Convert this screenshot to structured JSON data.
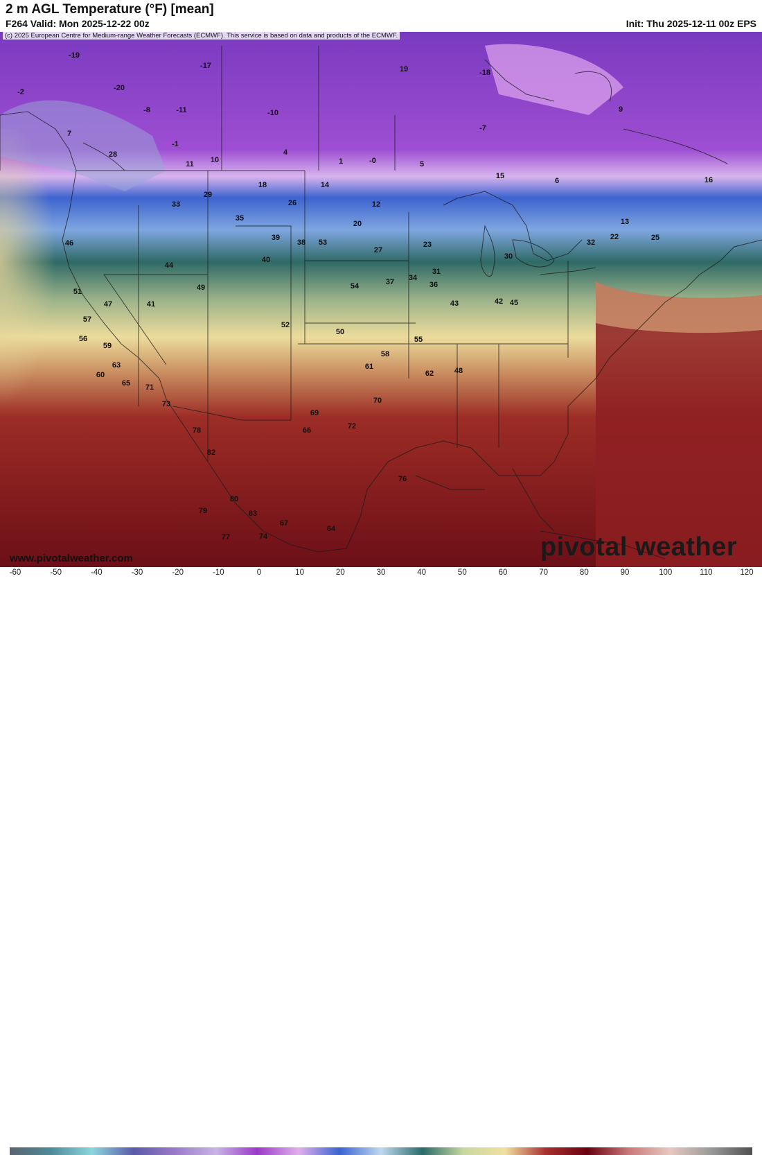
{
  "header": {
    "title": "2 m AGL Temperature (°F) [mean]",
    "valid": "F264 Valid: Mon 2025-12-22 00z",
    "init": "Init: Thu 2025-12-11 00z EPS"
  },
  "credit": "(c) 2025 European Centre for Medium-range Weather Forecasts (ECMWF). This service is based on data and products of the ECMWF.",
  "watermark": {
    "site": "www.pivotalweather.com",
    "brand": "pivotal weather"
  },
  "colorbar": {
    "ticks": [
      "-60",
      "-50",
      "-40",
      "-30",
      "-20",
      "-10",
      "0",
      "10",
      "20",
      "30",
      "40",
      "50",
      "60",
      "70",
      "80",
      "90",
      "100",
      "110",
      "120"
    ],
    "stops": [
      "#5a6470",
      "#4f8a9a",
      "#8cd6de",
      "#5a5aa8",
      "#9a7ac8",
      "#c8b4e4",
      "#9a3ac8",
      "#e0b0ec",
      "#3a64d0",
      "#c0d8f0",
      "#2a6a6a",
      "#c8d8a0",
      "#f0e0a0",
      "#a83030",
      "#6a0010",
      "#c87878",
      "#e8c8c0",
      "#9a9a9a",
      "#505050"
    ]
  },
  "map_labels": [
    {
      "v": "-19",
      "cls": "cold"
    },
    {
      "v": "-20",
      "cls": "cold"
    },
    {
      "v": "-17",
      "cls": "cold"
    },
    {
      "v": "-2",
      "cls": "cold"
    },
    {
      "v": "-8",
      "cls": "cold"
    },
    {
      "v": "-11",
      "cls": "cold"
    },
    {
      "v": "7",
      "cls": "cold"
    },
    {
      "v": "28",
      "cls": "cool"
    },
    {
      "v": "11",
      "cls": "cold"
    },
    {
      "v": "10",
      "cls": "cold"
    },
    {
      "v": "4",
      "cls": "cold"
    },
    {
      "v": "1",
      "cls": "cold"
    },
    {
      "v": "-7",
      "cls": "cold"
    },
    {
      "v": "-18",
      "cls": "cold"
    },
    {
      "v": "19",
      "cls": "cool"
    },
    {
      "v": "-10",
      "cls": "cold"
    },
    {
      "v": "9",
      "cls": "cold"
    },
    {
      "v": "16",
      "cls": "cool"
    },
    {
      "v": "14",
      "cls": "cool"
    },
    {
      "v": "18",
      "cls": "cool"
    },
    {
      "v": "29",
      "cls": "cool"
    },
    {
      "v": "26",
      "cls": "cool"
    },
    {
      "v": "20",
      "cls": "cool"
    },
    {
      "v": "33",
      "cls": "cool"
    },
    {
      "v": "35",
      "cls": "cool"
    },
    {
      "v": "39",
      "cls": "mild"
    },
    {
      "v": "38",
      "cls": "mild"
    },
    {
      "v": "27",
      "cls": "cool"
    },
    {
      "v": "23",
      "cls": "cool"
    },
    {
      "v": "30",
      "cls": "cool"
    },
    {
      "v": "40",
      "cls": "mild"
    },
    {
      "v": "44",
      "cls": "mild"
    },
    {
      "v": "46",
      "cls": "mild"
    },
    {
      "v": "51",
      "cls": "mild"
    },
    {
      "v": "47",
      "cls": "mild"
    },
    {
      "v": "41",
      "cls": "mild"
    },
    {
      "v": "52",
      "cls": "mild"
    },
    {
      "v": "49",
      "cls": "mild"
    },
    {
      "v": "57",
      "cls": "warm"
    },
    {
      "v": "56",
      "cls": "warm"
    },
    {
      "v": "59",
      "cls": "warm"
    },
    {
      "v": "63",
      "cls": "warm"
    },
    {
      "v": "60",
      "cls": "warm"
    },
    {
      "v": "65",
      "cls": "warm"
    },
    {
      "v": "71",
      "cls": "hot"
    },
    {
      "v": "73",
      "cls": "hot"
    },
    {
      "v": "78",
      "cls": "hot"
    },
    {
      "v": "82",
      "cls": "hot"
    },
    {
      "v": "80",
      "cls": "hot"
    },
    {
      "v": "83",
      "cls": "hot"
    },
    {
      "v": "79",
      "cls": "hot"
    },
    {
      "v": "77",
      "cls": "hot"
    },
    {
      "v": "74",
      "cls": "hot"
    },
    {
      "v": "76",
      "cls": "hot"
    },
    {
      "v": "67",
      "cls": "warm"
    },
    {
      "v": "64",
      "cls": "warm"
    },
    {
      "v": "66",
      "cls": "warm"
    },
    {
      "v": "69",
      "cls": "warm"
    },
    {
      "v": "70",
      "cls": "hot"
    },
    {
      "v": "72",
      "cls": "hot"
    },
    {
      "v": "61",
      "cls": "warm"
    },
    {
      "v": "62",
      "cls": "warm"
    },
    {
      "v": "58",
      "cls": "warm"
    },
    {
      "v": "55",
      "cls": "warm"
    },
    {
      "v": "50",
      "cls": "mild"
    },
    {
      "v": "48",
      "cls": "mild"
    },
    {
      "v": "43",
      "cls": "mild"
    },
    {
      "v": "42",
      "cls": "mild"
    },
    {
      "v": "45",
      "cls": "mild"
    },
    {
      "v": "54",
      "cls": "warm"
    },
    {
      "v": "53",
      "cls": "warm"
    },
    {
      "v": "36",
      "cls": "cool"
    },
    {
      "v": "37",
      "cls": "cool"
    },
    {
      "v": "34",
      "cls": "cool"
    },
    {
      "v": "31",
      "cls": "cool"
    },
    {
      "v": "32",
      "cls": "cool"
    },
    {
      "v": "22",
      "cls": "cool"
    },
    {
      "v": "25",
      "cls": "cool"
    },
    {
      "v": "13",
      "cls": "cool"
    },
    {
      "v": "15",
      "cls": "cool"
    },
    {
      "v": "12",
      "cls": "cool"
    },
    {
      "v": "6",
      "cls": "cold"
    },
    {
      "v": "5",
      "cls": "cold"
    },
    {
      "v": "-0",
      "cls": "cold"
    },
    {
      "v": "-1",
      "cls": "cold"
    }
  ]
}
